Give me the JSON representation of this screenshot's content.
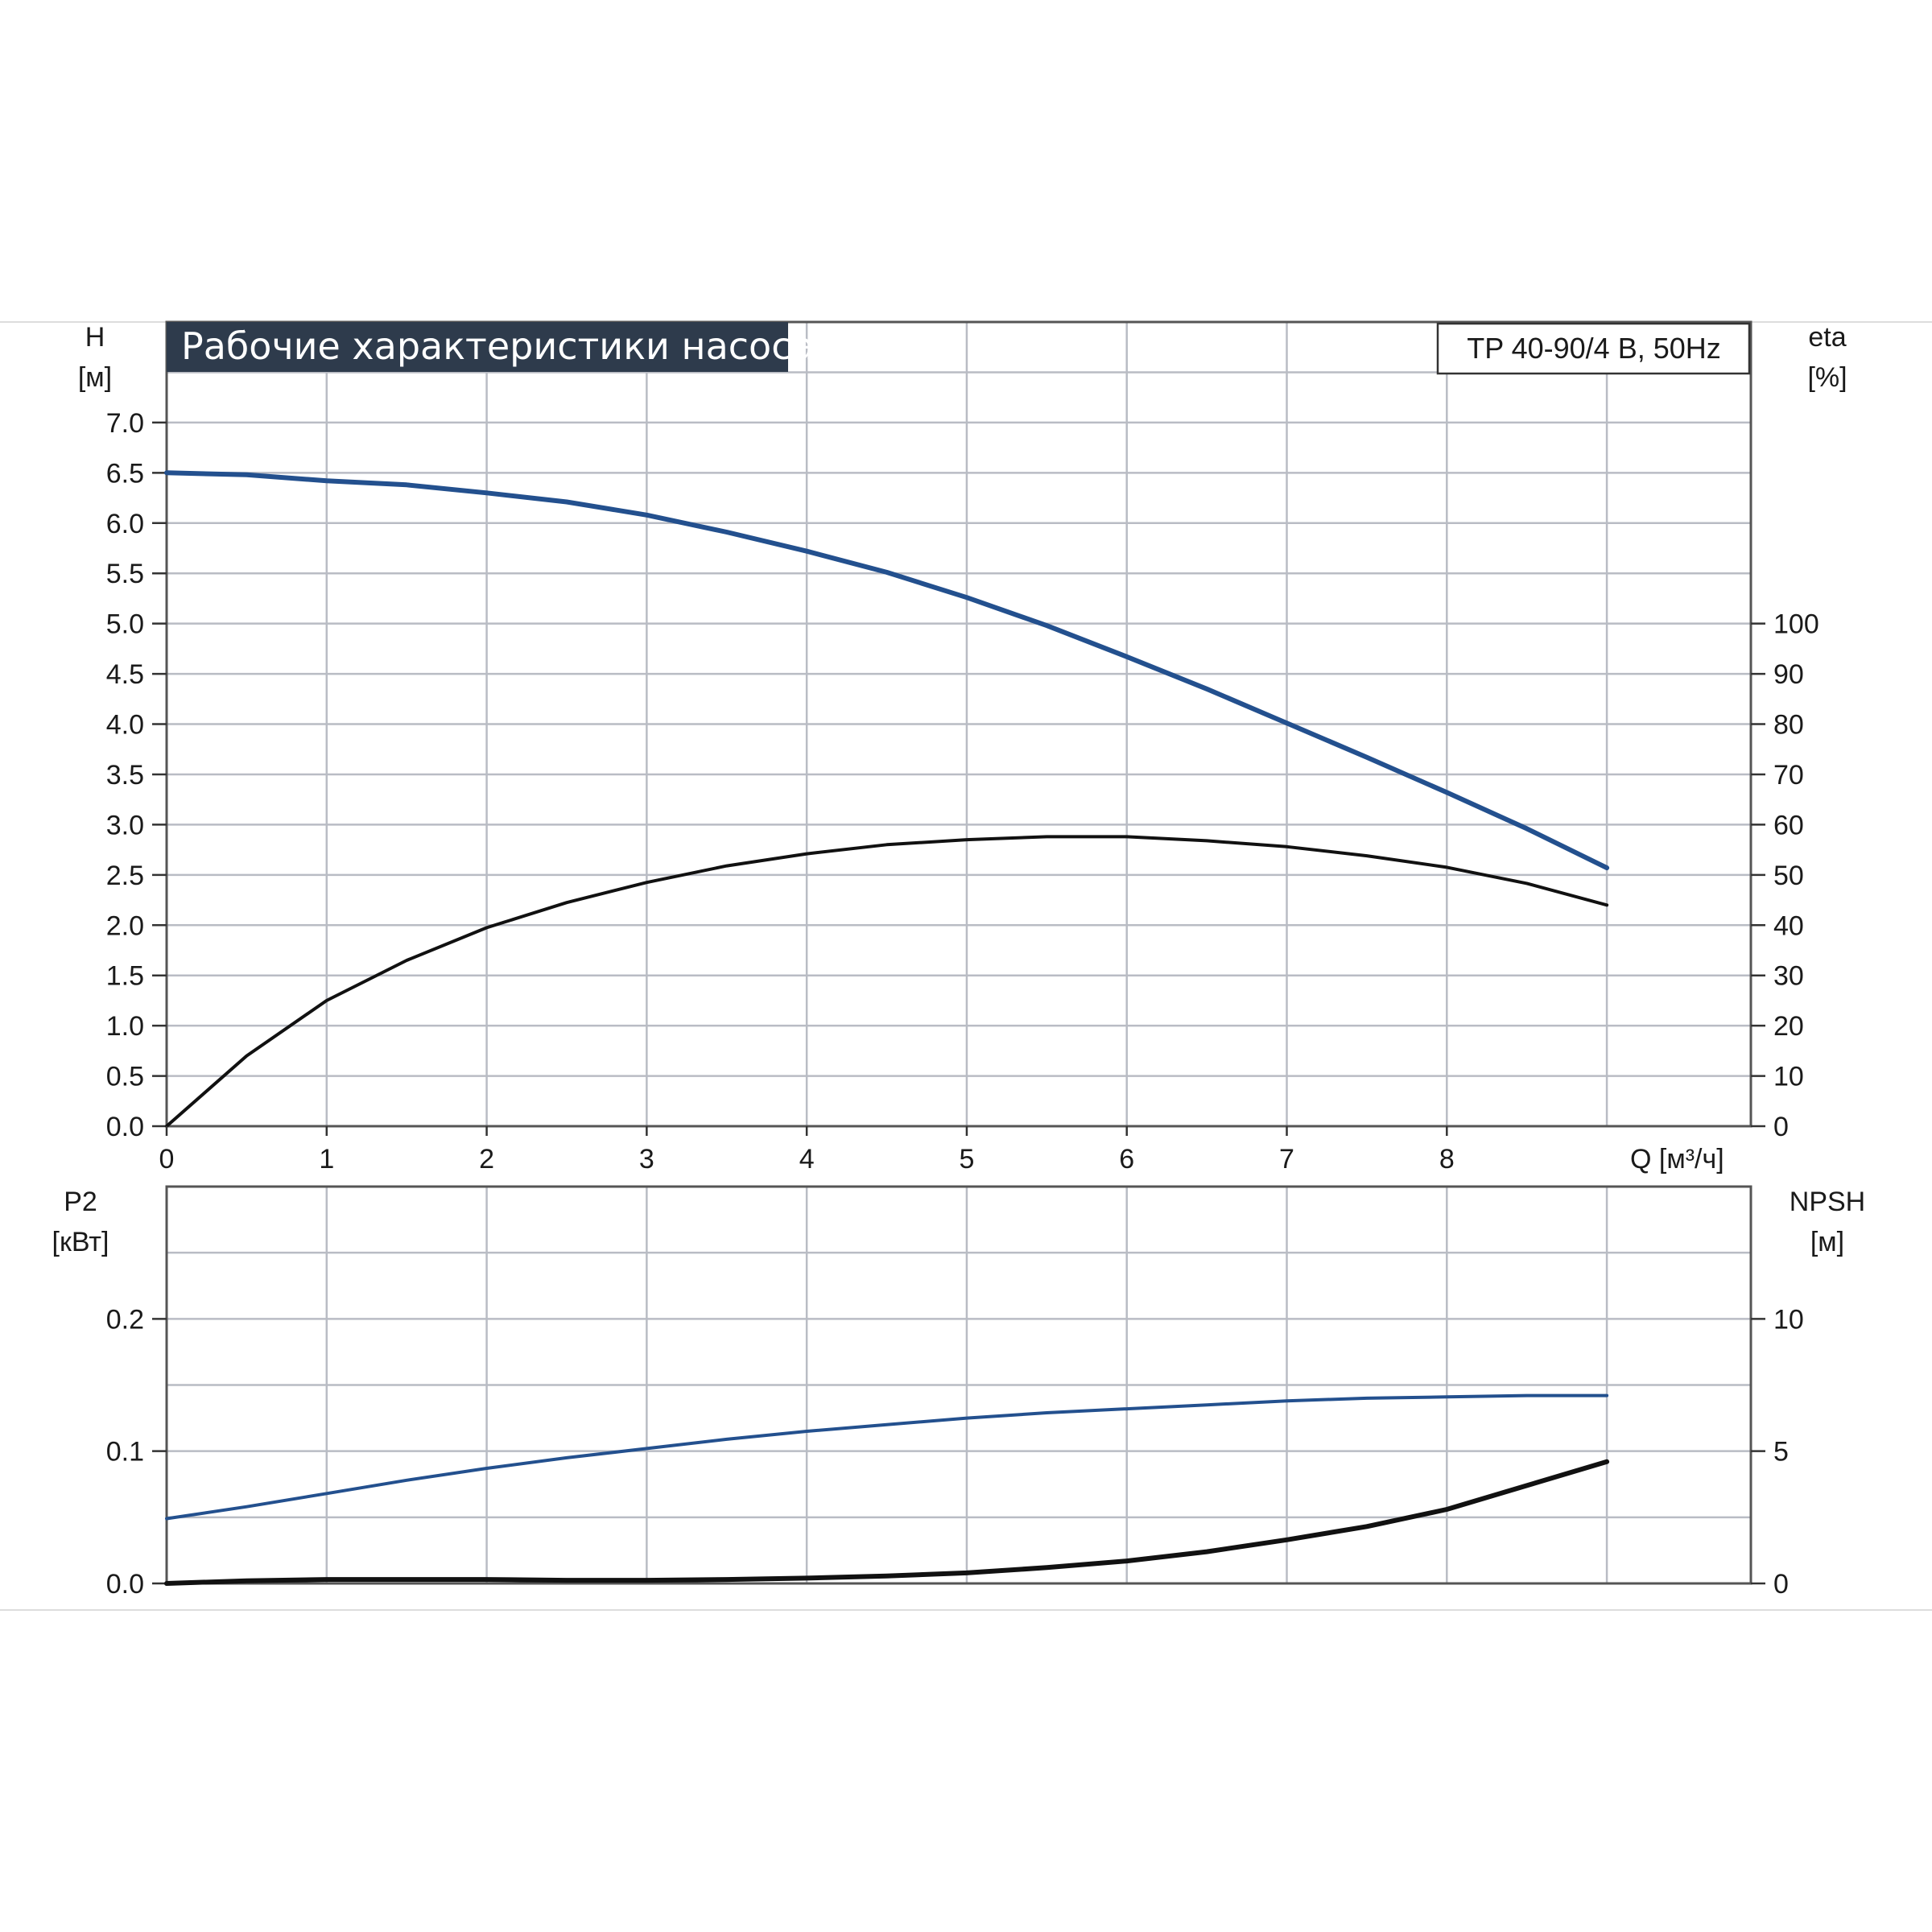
{
  "chart_data": [
    {
      "type": "line",
      "panel": "upper",
      "title": "Рабочие характеристики насоса",
      "model_label": "TP 40-90/4 B, 50Hz",
      "x_axis": {
        "label": "Q [м³/ч]",
        "range": [
          0,
          9.9
        ],
        "ticks": [
          0,
          1,
          2,
          3,
          4,
          5,
          6,
          7,
          8
        ],
        "tick_labels": [
          "0",
          "1",
          "2",
          "3",
          "4",
          "5",
          "6",
          "7",
          "8"
        ]
      },
      "y_left": {
        "label_top": "H",
        "label_unit": "[м]",
        "range": [
          0,
          8
        ],
        "ticks": [
          0,
          0.5,
          1,
          1.5,
          2,
          2.5,
          3,
          3.5,
          4,
          4.5,
          5,
          5.5,
          6,
          6.5,
          7
        ],
        "tick_labels": [
          "0.0",
          "0.5",
          "1.0",
          "1.5",
          "2.0",
          "2.5",
          "3.0",
          "3.5",
          "4.0",
          "4.5",
          "5.0",
          "5.5",
          "6.0",
          "6.5",
          "7.0"
        ]
      },
      "y_right": {
        "label_top": "eta",
        "label_unit": "[%]",
        "range": [
          0,
          160
        ],
        "ticks": [
          0,
          10,
          20,
          30,
          40,
          50,
          60,
          70,
          80,
          90,
          100
        ],
        "tick_labels": [
          "0",
          "10",
          "20",
          "30",
          "40",
          "50",
          "60",
          "70",
          "80",
          "90",
          "100"
        ]
      },
      "grid": true,
      "series": [
        {
          "axis": "left",
          "color": "#23508e",
          "x": [
            0,
            0.5,
            1,
            1.5,
            2,
            2.5,
            3,
            3.5,
            4,
            4.5,
            5,
            5.5,
            6,
            6.5,
            7,
            7.5,
            8,
            8.5,
            9
          ],
          "values": [
            6.5,
            6.48,
            6.42,
            6.38,
            6.3,
            6.21,
            6.08,
            5.91,
            5.72,
            5.51,
            5.26,
            4.98,
            4.67,
            4.35,
            4.01,
            3.67,
            3.32,
            2.96,
            2.57
          ]
        },
        {
          "axis": "right",
          "color": "#111111",
          "x": [
            0,
            0.5,
            1,
            1.5,
            2,
            2.5,
            3,
            3.5,
            4,
            4.5,
            5,
            5.5,
            6,
            6.5,
            7,
            7.5,
            8,
            8.5,
            9
          ],
          "values": [
            0,
            14,
            25,
            33,
            39.5,
            44.5,
            48.5,
            51.8,
            54.2,
            56,
            57,
            57.6,
            57.6,
            56.8,
            55.6,
            53.8,
            51.5,
            48.3,
            44
          ]
        }
      ]
    },
    {
      "type": "line",
      "panel": "lower",
      "x_axis": {
        "range": [
          0,
          9.9
        ],
        "ticks": [
          0,
          1,
          2,
          3,
          4,
          5,
          6,
          7,
          8
        ]
      },
      "y_left": {
        "label_top": "P2",
        "label_unit": "[кВт]",
        "range": [
          0,
          0.3
        ],
        "ticks": [
          0,
          0.1,
          0.2
        ],
        "tick_labels": [
          "0.0",
          "0.1",
          "0.2"
        ]
      },
      "y_right": {
        "label_top": "NPSH",
        "label_unit": "[м]",
        "range": [
          0,
          15
        ],
        "ticks": [
          0,
          5,
          10
        ],
        "tick_labels": [
          "0",
          "5",
          "10"
        ]
      },
      "grid": true,
      "series": [
        {
          "axis": "left",
          "color": "#23508e",
          "x": [
            0,
            0.5,
            1,
            1.5,
            2,
            2.5,
            3,
            3.5,
            4,
            4.5,
            5,
            5.5,
            6,
            6.5,
            7,
            7.5,
            8,
            8.5,
            9
          ],
          "values": [
            0.049,
            0.058,
            0.068,
            0.078,
            0.087,
            0.095,
            0.102,
            0.109,
            0.115,
            0.12,
            0.125,
            0.129,
            0.132,
            0.135,
            0.138,
            0.14,
            0.141,
            0.142,
            0.142
          ]
        },
        {
          "axis": "right",
          "color": "#111111",
          "x": [
            0,
            0.5,
            1,
            1.5,
            2,
            2.5,
            3,
            3.5,
            4,
            4.5,
            5,
            5.5,
            6,
            6.5,
            7,
            7.5,
            8,
            8.5,
            9
          ],
          "values": [
            0,
            0.1,
            0.15,
            0.15,
            0.15,
            0.12,
            0.12,
            0.15,
            0.2,
            0.28,
            0.4,
            0.6,
            0.85,
            1.2,
            1.65,
            2.15,
            2.8,
            3.7,
            4.6
          ]
        }
      ]
    }
  ]
}
